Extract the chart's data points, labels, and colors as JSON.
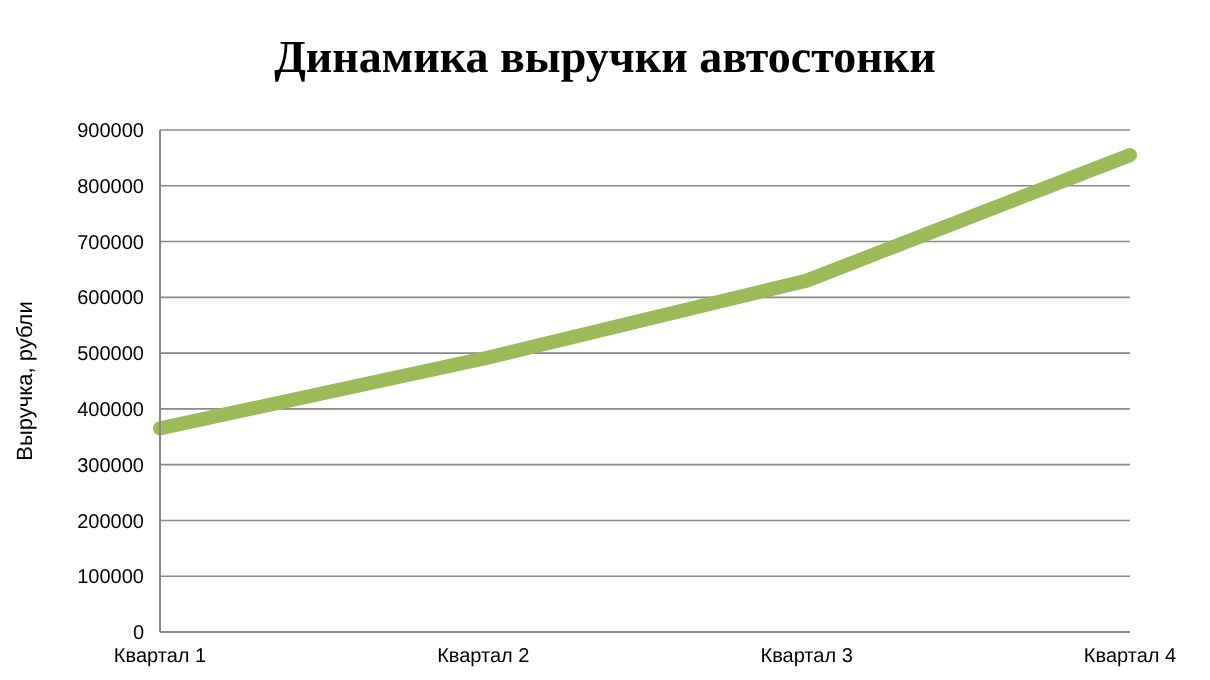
{
  "chart_data": {
    "type": "line",
    "title": "Динамика выручки автостонки",
    "ylabel": "Выручка, рубли",
    "categories": [
      "Квартал 1",
      "Квартал 2",
      "Квартал 3",
      "Квартал 4"
    ],
    "series": [
      {
        "color": "#9bbb59",
        "values": [
          365000,
          490000,
          630000,
          855000
        ]
      }
    ],
    "ylim": [
      0,
      900000
    ],
    "yticks": [
      0,
      100000,
      200000,
      300000,
      400000,
      500000,
      600000,
      700000,
      800000,
      900000
    ],
    "grid": "y",
    "legend": false,
    "marker": "none",
    "line_style": "solid"
  }
}
